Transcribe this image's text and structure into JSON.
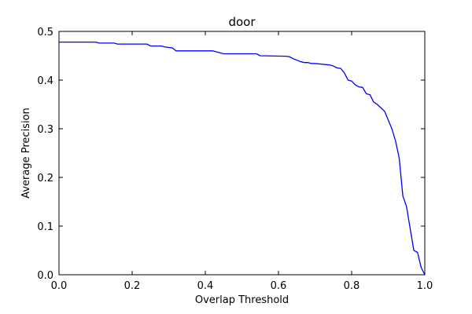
{
  "chart_data": {
    "type": "line",
    "title": "door",
    "xlabel": "Overlap Threshold",
    "ylabel": "Average Precision",
    "xlim": [
      0.0,
      1.0
    ],
    "ylim": [
      0.0,
      0.5
    ],
    "xticks": [
      "0.0",
      "0.2",
      "0.4",
      "0.6",
      "0.8",
      "1.0"
    ],
    "yticks": [
      "0.0",
      "0.1",
      "0.2",
      "0.3",
      "0.4",
      "0.5"
    ],
    "grid": false,
    "legend": "none",
    "series": [
      {
        "color": "#0000ff",
        "x": [
          0.0,
          0.1,
          0.11,
          0.15,
          0.16,
          0.24,
          0.25,
          0.28,
          0.29,
          0.31,
          0.32,
          0.42,
          0.43,
          0.45,
          0.54,
          0.55,
          0.62,
          0.63,
          0.64,
          0.65,
          0.66,
          0.67,
          0.68,
          0.69,
          0.7,
          0.74,
          0.75,
          0.76,
          0.77,
          0.78,
          0.79,
          0.8,
          0.81,
          0.82,
          0.83,
          0.84,
          0.85,
          0.86,
          0.87,
          0.88,
          0.89,
          0.9,
          0.91,
          0.92,
          0.93,
          0.94,
          0.95,
          0.96,
          0.97,
          0.98,
          0.99,
          1.0
        ],
        "y": [
          0.478,
          0.478,
          0.476,
          0.476,
          0.474,
          0.474,
          0.47,
          0.47,
          0.468,
          0.466,
          0.46,
          0.46,
          0.458,
          0.454,
          0.454,
          0.45,
          0.449,
          0.448,
          0.444,
          0.441,
          0.438,
          0.436,
          0.436,
          0.434,
          0.434,
          0.431,
          0.429,
          0.425,
          0.424,
          0.415,
          0.4,
          0.398,
          0.39,
          0.386,
          0.385,
          0.372,
          0.37,
          0.355,
          0.35,
          0.343,
          0.336,
          0.318,
          0.3,
          0.275,
          0.24,
          0.162,
          0.14,
          0.095,
          0.05,
          0.046,
          0.015,
          0.0
        ]
      }
    ]
  }
}
